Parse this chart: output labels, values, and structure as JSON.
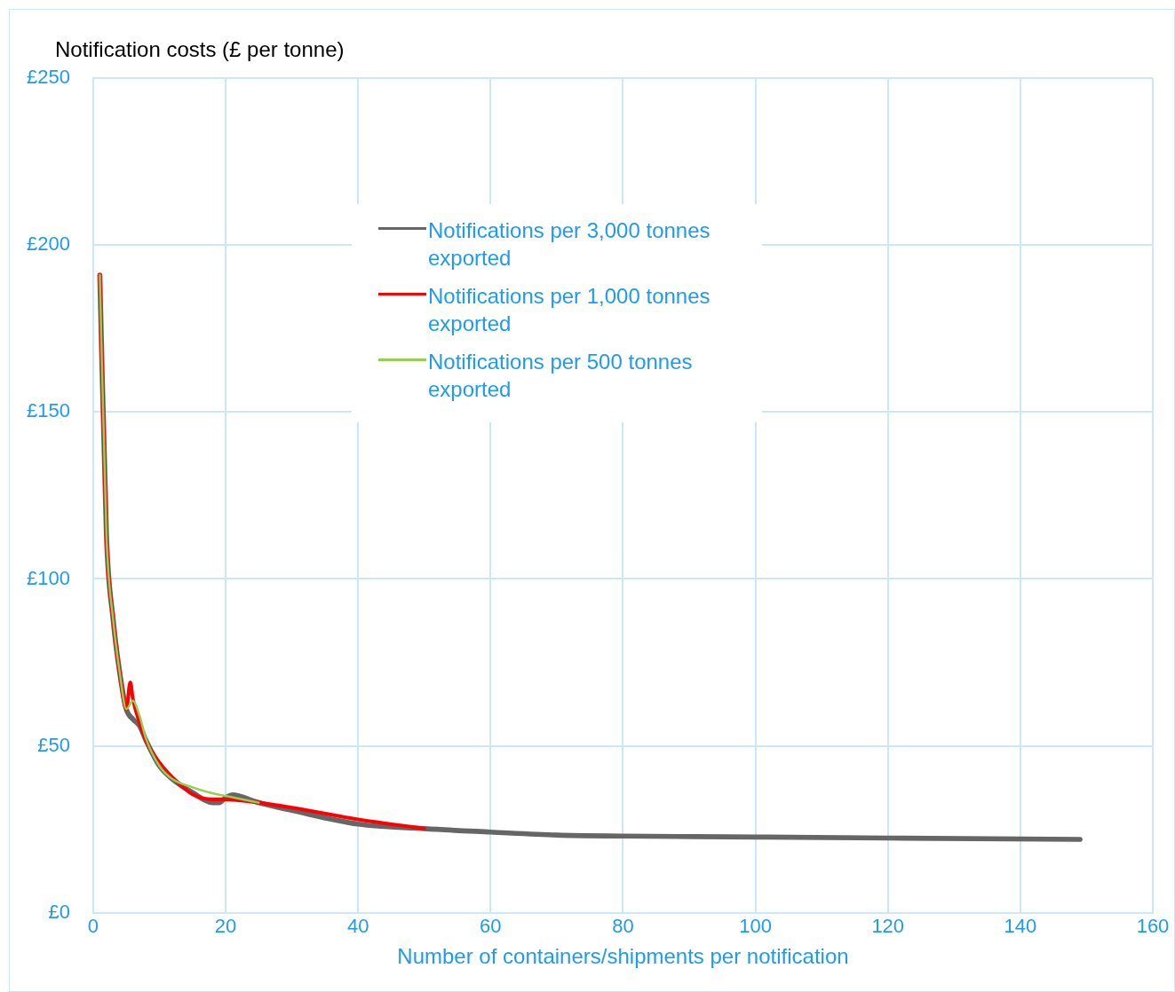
{
  "chart_data": {
    "type": "line",
    "ylabel": "Notification costs (£ per tonne)",
    "xlabel": "Number of containers/shipments per notification",
    "xlim": [
      0,
      160
    ],
    "xticks": [
      0,
      20,
      40,
      60,
      80,
      100,
      120,
      140,
      160
    ],
    "ylim": [
      0,
      250
    ],
    "yticks": [
      {
        "value": 0,
        "label": "£0"
      },
      {
        "value": 50,
        "label": "£50"
      },
      {
        "value": 100,
        "label": "£100"
      },
      {
        "value": 150,
        "label": "£150"
      },
      {
        "value": 200,
        "label": "£200"
      },
      {
        "value": 250,
        "label": "£250"
      }
    ],
    "grid": true,
    "legend": "top",
    "marker": "none",
    "line_style": "solid",
    "series": [
      {
        "name": "Notifications per 3,000 tonnes exported",
        "color": "#666666",
        "x": [
          1,
          2,
          3,
          4,
          5,
          6,
          7,
          8,
          10,
          12,
          15,
          18,
          19,
          20,
          21,
          22,
          25,
          30,
          40,
          50,
          60,
          70,
          80,
          100,
          120,
          149
        ],
        "values": [
          191,
          113,
          88,
          72,
          61,
          58,
          56,
          51.5,
          44,
          40,
          36,
          33,
          33,
          34.5,
          35.3,
          35,
          33,
          30.7,
          26.6,
          25.2,
          24.2,
          23.3,
          23,
          22.7,
          22.4,
          22
        ]
      },
      {
        "name": "Notifications per 1,000 tonnes exported",
        "color": "#ff0000",
        "x": [
          1,
          2,
          3,
          4,
          5,
          5.6,
          6,
          7,
          8,
          10,
          12,
          15,
          18,
          20,
          25,
          30,
          40,
          50
        ],
        "values": [
          191,
          113,
          88,
          72,
          61,
          69,
          64,
          57,
          51.5,
          45,
          40.5,
          35.5,
          34,
          34,
          33,
          31.5,
          28,
          25.2
        ]
      },
      {
        "name": "Notifications per 500 tonnes exported",
        "color": "#92d050",
        "x": [
          1,
          2,
          3,
          4,
          5,
          6,
          7,
          8,
          10,
          12,
          15,
          18,
          20,
          25
        ],
        "values": [
          191,
          113,
          88,
          72,
          61,
          63.5,
          59,
          52,
          44,
          40,
          37.6,
          35.8,
          35,
          33
        ]
      }
    ]
  }
}
